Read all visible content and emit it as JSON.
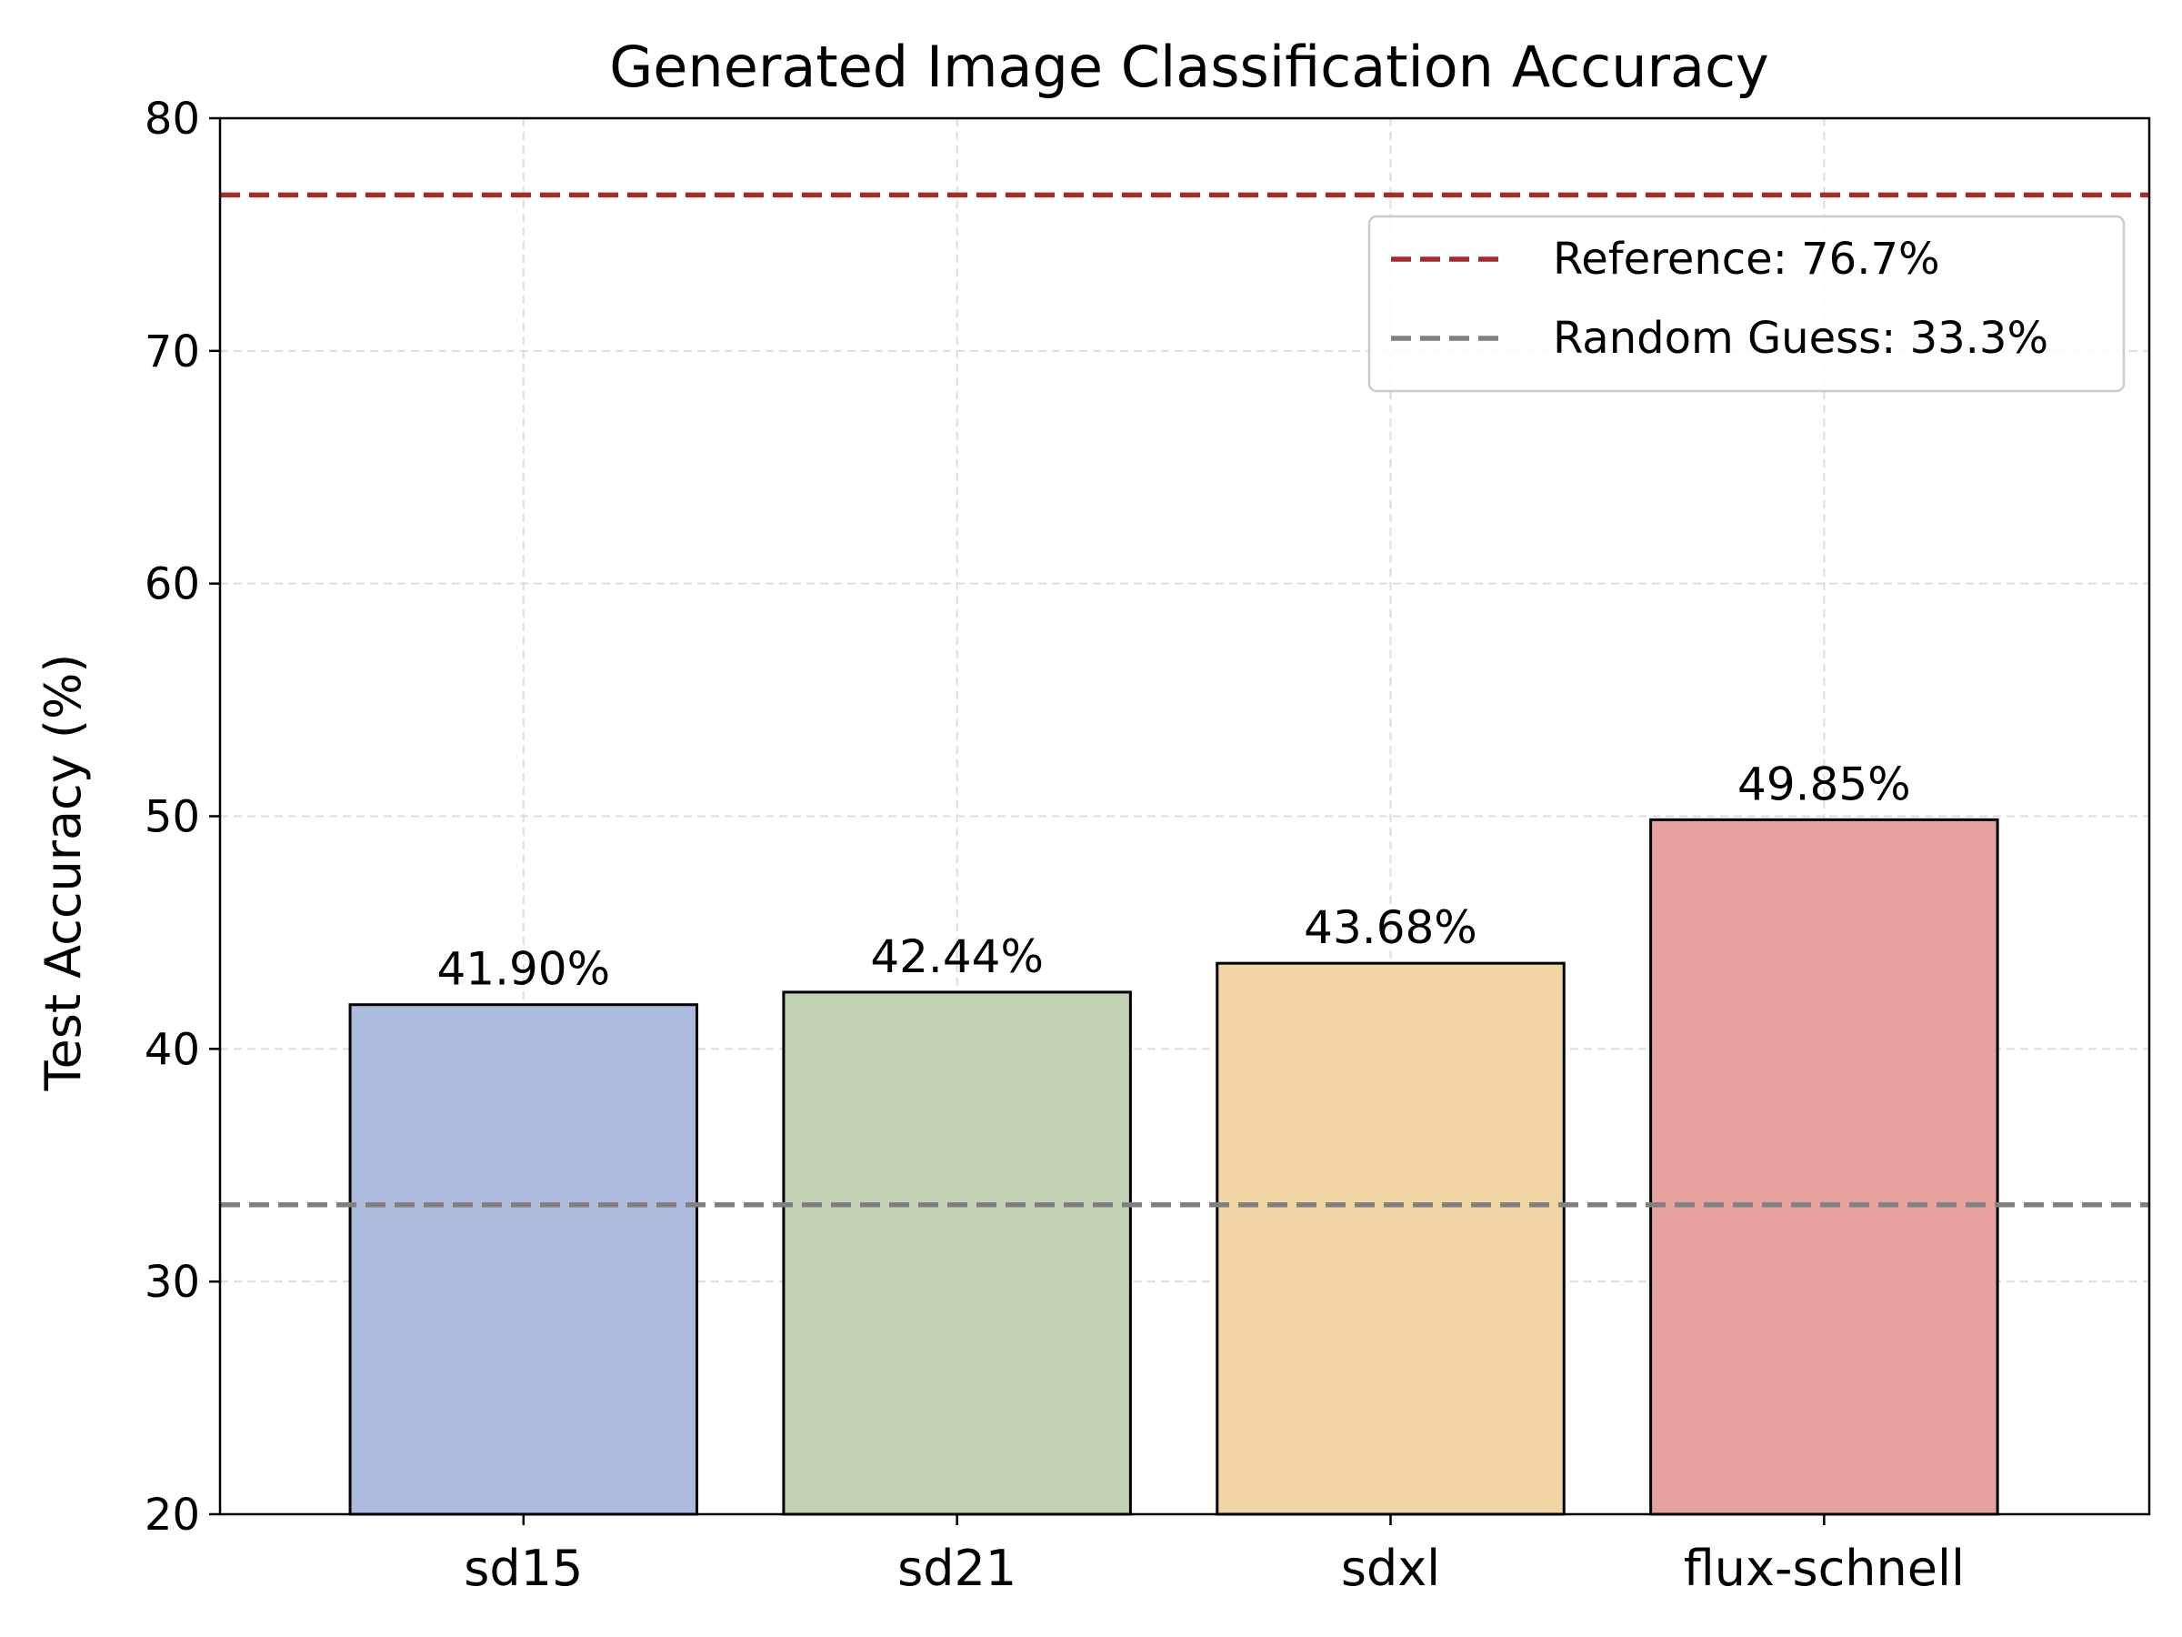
{
  "chart_data": {
    "type": "bar",
    "title": "Generated Image Classification Accuracy",
    "xlabel": "",
    "ylabel": "Test Accuracy (%)",
    "categories": [
      "sd15",
      "sd21",
      "sdxl",
      "flux-schnell"
    ],
    "values": [
      41.9,
      42.44,
      43.68,
      49.85
    ],
    "value_labels": [
      "41.90%",
      "42.44%",
      "43.68%",
      "49.85%"
    ],
    "bar_colors": [
      "#abbadd",
      "#c3d1b5",
      "#f1d5a5",
      "#e7a19e"
    ],
    "ylim": [
      20,
      80
    ],
    "yticks": [
      20,
      30,
      40,
      50,
      60,
      70,
      80
    ],
    "ytick_labels": [
      "20",
      "30",
      "40",
      "50",
      "60",
      "70",
      "80"
    ],
    "grid": true,
    "reference_lines": [
      {
        "label": "Reference: 76.7%",
        "value": 76.7,
        "color": "#a52a2a"
      },
      {
        "label": "Random Guess: 33.3%",
        "value": 33.3,
        "color": "#808080"
      }
    ],
    "legend_position": "top-right"
  }
}
